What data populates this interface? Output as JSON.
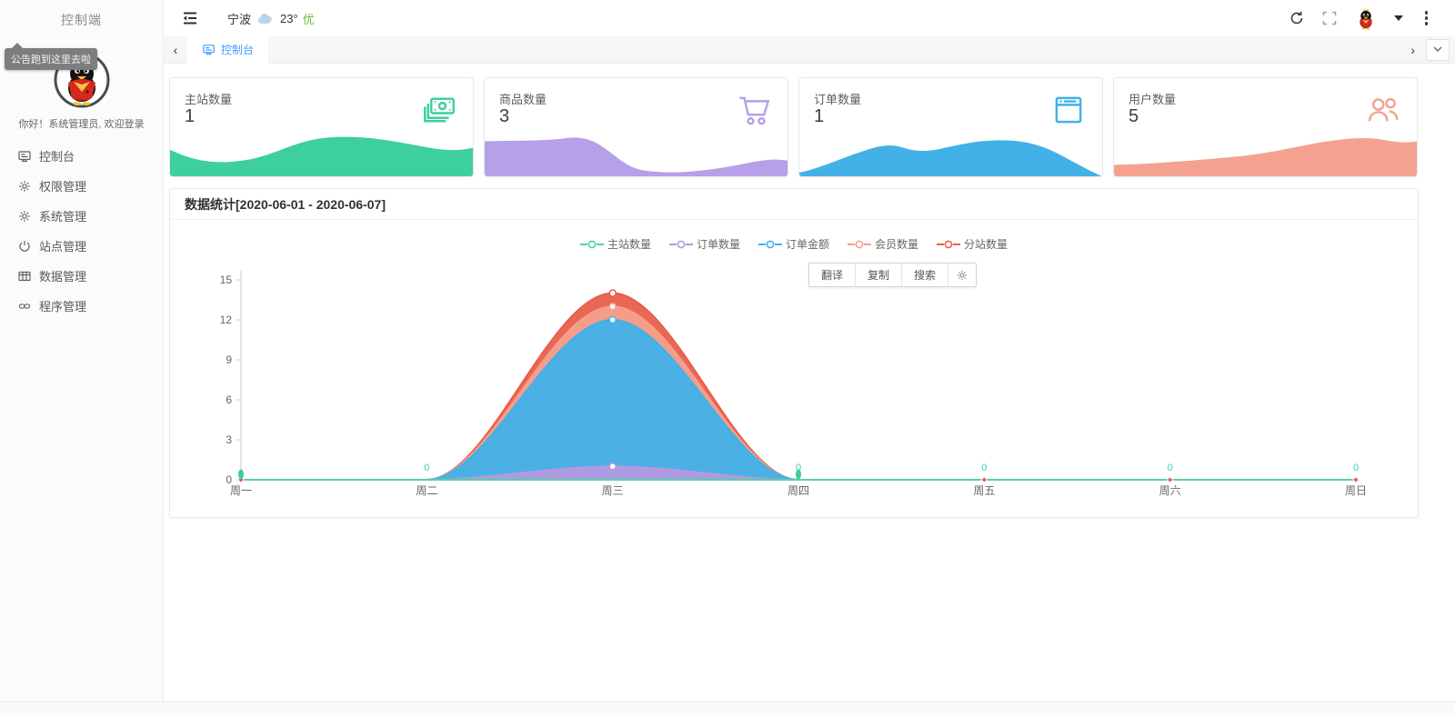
{
  "sidebar": {
    "title": "控制端",
    "tooltip": "公告跑到这里去啦",
    "greeting": "你好！系统管理员, 欢迎登录",
    "menu": [
      {
        "label": "控制台",
        "icon": "monitor-icon"
      },
      {
        "label": "权限管理",
        "icon": "gear-icon"
      },
      {
        "label": "系统管理",
        "icon": "gear-icon"
      },
      {
        "label": "站点管理",
        "icon": "power-icon"
      },
      {
        "label": "数据管理",
        "icon": "table-icon"
      },
      {
        "label": "程序管理",
        "icon": "link-icon"
      }
    ]
  },
  "topbar": {
    "city": "宁波",
    "temperature": "23°",
    "air_quality": "优",
    "air_quality_color": "#67c23a",
    "icons": [
      "collapse-icon",
      "cloud-icon",
      "refresh-icon",
      "fullscreen-icon",
      "avatar",
      "caret-down-icon",
      "kebab-icon"
    ]
  },
  "tabbar": {
    "active_tab": "控制台",
    "prev_label": "‹",
    "next_label": "›"
  },
  "cards": [
    {
      "label": "主站数量",
      "value": "1",
      "color": "#3ecf9e",
      "icon": "banknote-icon"
    },
    {
      "label": "商品数量",
      "value": "3",
      "color": "#b6a0e8",
      "icon": "cart-icon"
    },
    {
      "label": "订单数量",
      "value": "1",
      "color": "#41b1e8",
      "icon": "window-icon"
    },
    {
      "label": "用户数量",
      "value": "5",
      "color": "#f4a28f",
      "icon": "users-icon"
    }
  ],
  "chart": {
    "title": "数据统计[2020-06-01 - 2020-06-07]"
  },
  "toolbar": {
    "translate_label": "翻译",
    "copy_label": "复制",
    "search_label": "搜索",
    "gear_icon": "gear-icon"
  },
  "chart_data": {
    "type": "area",
    "title": "数据统计[2020-06-01 - 2020-06-07]",
    "x": [
      "周一",
      "周二",
      "周三",
      "周四",
      "周五",
      "周六",
      "周日"
    ],
    "series": [
      {
        "name": "主站数量",
        "color": "#52d4a4",
        "values": [
          0,
          0,
          0,
          0,
          0,
          0,
          0
        ]
      },
      {
        "name": "订单数量",
        "color": "#b299e3",
        "values": [
          0,
          0,
          1,
          0,
          0,
          0,
          0
        ]
      },
      {
        "name": "订单金额",
        "color": "#41b1e8",
        "values": [
          0,
          0,
          12,
          0,
          0,
          0,
          0
        ]
      },
      {
        "name": "会员数量",
        "color": "#f5a08c",
        "values": [
          0,
          0,
          13,
          0,
          0,
          0,
          0
        ]
      },
      {
        "name": "分站数量",
        "color": "#e8604c",
        "values": [
          0,
          0,
          14,
          0,
          0,
          0,
          0
        ]
      }
    ],
    "ylim": [
      0,
      15
    ],
    "yticks": [
      0,
      3,
      6,
      9,
      12,
      15
    ],
    "xlabel": "",
    "ylabel": "",
    "grid": "off",
    "legend_position": "top-center",
    "smooth": true,
    "zero_label_days": [
      1,
      3,
      4,
      5,
      6
    ],
    "zero_label_color": "#3dcf9e",
    "pin_marker_days": [
      0,
      3
    ],
    "diamond_marker_days": [
      0,
      4,
      5,
      6
    ],
    "axis_color": "#cccccc",
    "tick_text_color": "#666666"
  }
}
